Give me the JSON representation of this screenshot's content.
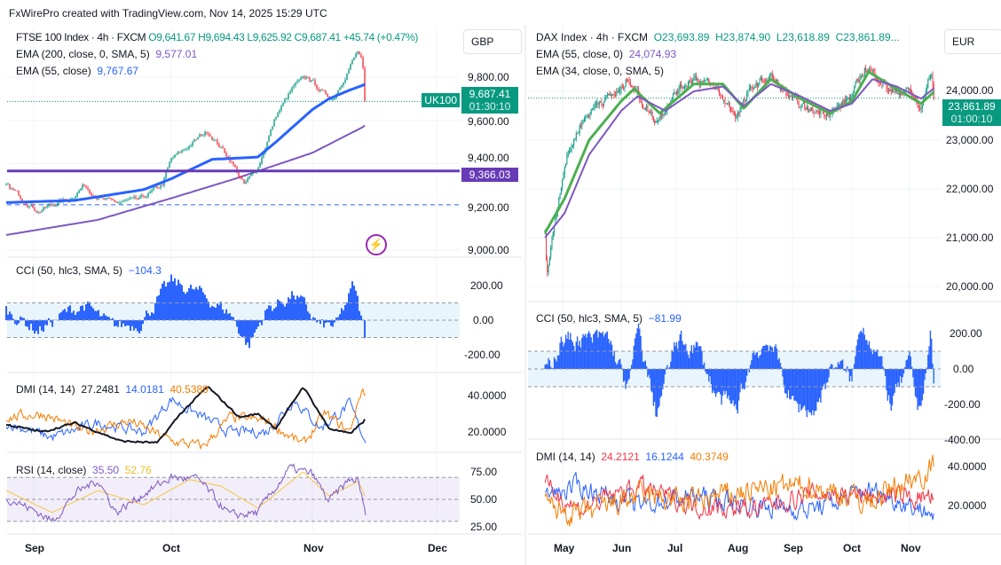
{
  "header": "FxWirePro created with TradingView.com, Nov 14, 2025 15:29 UTC",
  "colors": {
    "up": "#089981",
    "down": "#f23645",
    "ema55": "#2962ff",
    "ema200": "#7e57c2",
    "cci": "#2962ff",
    "level": "#673ab7"
  },
  "left": {
    "title": "FTSE 100 Index · 4h · FXCM",
    "o": "O9,641.67",
    "h": "H9,694.43",
    "l": "L9,625.92",
    "c": "C9,687.41",
    "chg": "+45.74 (+0.47%)",
    "ema200_label": "EMA (200, close, 0, SMA, 5)",
    "ema200_val": "9,577.01",
    "ema55_label": "EMA (55, close)",
    "ema55_val": "9,767.67",
    "currency": "GBP",
    "symbol_tag": "UK100",
    "last_price": "9,687.41",
    "countdown": "01:30:10",
    "level_tag": "9,366.03",
    "price_ticks": [
      "9,800.00",
      "9,600.00",
      "9,400.00",
      "9,200.00",
      "9,000.00"
    ],
    "cci_label": "CCI (50, hlc3, SMA, 5)",
    "cci_val": "−104.3",
    "cci_ticks": [
      "200.00",
      "0.00",
      "-200.00"
    ],
    "dmi_label": "DMI (14, 14)",
    "dmi_adx": "27.2481",
    "dmi_plus": "14.0181",
    "dmi_minus": "40.5389",
    "dmi_ticks": [
      "40.0000",
      "20.0000"
    ],
    "rsi_label": "RSI (14, close)",
    "rsi_val": "35.50",
    "rsi_ma": "52.76",
    "rsi_ticks": [
      "75.00",
      "50.00",
      "25.00"
    ],
    "months": [
      "Sep",
      "Oct",
      "Nov",
      "Dec"
    ]
  },
  "right": {
    "title": "DAX Index · 4h · FXCM",
    "o": "O23,693.89",
    "h": "H23,874.90",
    "l": "L23,618.89",
    "c": "C23,861.89...",
    "ema55_label": "EMA (55, close, 0)",
    "ema55_val": "24,074.93",
    "ema34_label": "EMA (34, close, 0, SMA, 5)",
    "currency": "EUR",
    "last_price": "23,861.89",
    "countdown": "01:00:10",
    "price_ticks": [
      "24,000.00",
      "23,000.00",
      "22,000.00",
      "21,000.00",
      "20,000.00"
    ],
    "cci_label": "CCI (50, hlc3, SMA, 5)",
    "cci_val": "−81.99",
    "cci_ticks": [
      "200.00",
      "0.00",
      "-200.00",
      "-400.00"
    ],
    "dmi_label": "DMI (14, 14)",
    "dmi_adx": "24.2121",
    "dmi_plus": "16.1244",
    "dmi_minus": "40.3749",
    "dmi_ticks": [
      "40.0000",
      "20.0000"
    ],
    "months": [
      "May",
      "Jun",
      "Jul",
      "Aug",
      "Sep",
      "Oct",
      "Nov"
    ]
  },
  "chart_data": [
    {
      "type": "candlestick",
      "symbol": "FTSE 100 Index",
      "timeframe": "4h",
      "ylim": [
        9000,
        9950
      ],
      "horizontal_line": 9366.03,
      "dashed_line": 9210,
      "close": [
        [
          "2025-08-26",
          9300
        ],
        [
          "2025-08-29",
          9250
        ],
        [
          "2025-09-02",
          9180
        ],
        [
          "2025-09-05",
          9210
        ],
        [
          "2025-09-09",
          9240
        ],
        [
          "2025-09-12",
          9300
        ],
        [
          "2025-09-16",
          9230
        ],
        [
          "2025-09-19",
          9220
        ],
        [
          "2025-09-24",
          9230
        ],
        [
          "2025-09-29",
          9300
        ],
        [
          "2025-10-01",
          9420
        ],
        [
          "2025-10-03",
          9450
        ],
        [
          "2025-10-07",
          9520
        ],
        [
          "2025-10-09",
          9550
        ],
        [
          "2025-10-14",
          9420
        ],
        [
          "2025-10-17",
          9300
        ],
        [
          "2025-10-20",
          9380
        ],
        [
          "2025-10-22",
          9500
        ],
        [
          "2025-10-24",
          9620
        ],
        [
          "2025-10-28",
          9760
        ],
        [
          "2025-10-31",
          9800
        ],
        [
          "2025-11-04",
          9720
        ],
        [
          "2025-11-06",
          9700
        ],
        [
          "2025-11-10",
          9850
        ],
        [
          "2025-11-12",
          9920
        ],
        [
          "2025-11-13",
          9870
        ],
        [
          "2025-11-14",
          9687
        ]
      ],
      "ema55": [
        [
          "2025-08-26",
          9220
        ],
        [
          "2025-09-10",
          9230
        ],
        [
          "2025-09-25",
          9280
        ],
        [
          "2025-10-01",
          9330
        ],
        [
          "2025-10-10",
          9420
        ],
        [
          "2025-10-20",
          9430
        ],
        [
          "2025-10-24",
          9500
        ],
        [
          "2025-11-01",
          9650
        ],
        [
          "2025-11-05",
          9700
        ],
        [
          "2025-11-10",
          9740
        ],
        [
          "2025-11-14",
          9768
        ]
      ],
      "ema200": [
        [
          "2025-08-26",
          9070
        ],
        [
          "2025-09-15",
          9140
        ],
        [
          "2025-10-01",
          9240
        ],
        [
          "2025-10-15",
          9330
        ],
        [
          "2025-11-01",
          9450
        ],
        [
          "2025-11-14",
          9577
        ]
      ],
      "cci": [
        [
          "2025-08-26",
          60
        ],
        [
          "2025-09-02",
          -60
        ],
        [
          "2025-09-08",
          40
        ],
        [
          "2025-09-12",
          90
        ],
        [
          "2025-09-18",
          -40
        ],
        [
          "2025-09-24",
          -20
        ],
        [
          "2025-10-01",
          220
        ],
        [
          "2025-10-07",
          160
        ],
        [
          "2025-10-14",
          40
        ],
        [
          "2025-10-18",
          -150
        ],
        [
          "2025-10-22",
          60
        ],
        [
          "2025-10-28",
          150
        ],
        [
          "2025-11-03",
          -40
        ],
        [
          "2025-11-07",
          -30
        ],
        [
          "2025-11-11",
          200
        ],
        [
          "2025-11-14",
          -104
        ]
      ],
      "dmi_adx": [
        [
          "2025-08-26",
          24
        ],
        [
          "2025-09-03",
          20
        ],
        [
          "2025-09-10",
          25
        ],
        [
          "2025-09-20",
          15
        ],
        [
          "2025-09-28",
          14
        ],
        [
          "2025-10-03",
          30
        ],
        [
          "2025-10-09",
          45
        ],
        [
          "2025-10-16",
          28
        ],
        [
          "2025-10-20",
          30
        ],
        [
          "2025-10-24",
          22
        ],
        [
          "2025-10-30",
          45
        ],
        [
          "2025-11-05",
          22
        ],
        [
          "2025-11-10",
          19
        ],
        [
          "2025-11-14",
          27
        ]
      ],
      "dmi_plus": [
        [
          "2025-08-26",
          25
        ],
        [
          "2025-09-05",
          17
        ],
        [
          "2025-09-15",
          25
        ],
        [
          "2025-09-25",
          20
        ],
        [
          "2025-10-01",
          38
        ],
        [
          "2025-10-08",
          28
        ],
        [
          "2025-10-14",
          20
        ],
        [
          "2025-10-22",
          20
        ],
        [
          "2025-10-28",
          38
        ],
        [
          "2025-11-03",
          22
        ],
        [
          "2025-11-10",
          35
        ],
        [
          "2025-11-14",
          14
        ]
      ],
      "dmi_minus": [
        [
          "2025-08-26",
          28
        ],
        [
          "2025-09-03",
          30
        ],
        [
          "2025-09-12",
          20
        ],
        [
          "2025-09-22",
          26
        ],
        [
          "2025-10-01",
          15
        ],
        [
          "2025-10-08",
          12
        ],
        [
          "2025-10-14",
          28
        ],
        [
          "2025-10-22",
          26
        ],
        [
          "2025-10-30",
          13
        ],
        [
          "2025-11-04",
          30
        ],
        [
          "2025-11-10",
          20
        ],
        [
          "2025-11-13",
          44
        ],
        [
          "2025-11-14",
          40.5
        ]
      ],
      "rsi": [
        [
          "2025-08-26",
          52
        ],
        [
          "2025-09-02",
          38
        ],
        [
          "2025-09-05",
          30
        ],
        [
          "2025-09-10",
          55
        ],
        [
          "2025-09-15",
          68
        ],
        [
          "2025-09-19",
          38
        ],
        [
          "2025-09-25",
          55
        ],
        [
          "2025-10-01",
          70
        ],
        [
          "2025-10-07",
          68
        ],
        [
          "2025-10-14",
          35
        ],
        [
          "2025-10-20",
          38
        ],
        [
          "2025-10-27",
          78
        ],
        [
          "2025-11-01",
          73
        ],
        [
          "2025-11-05",
          48
        ],
        [
          "2025-11-10",
          68
        ],
        [
          "2025-11-12",
          67
        ],
        [
          "2025-11-14",
          35.5
        ]
      ],
      "rsi_ma": [
        [
          "2025-08-26",
          58
        ],
        [
          "2025-09-05",
          38
        ],
        [
          "2025-09-15",
          58
        ],
        [
          "2025-09-25",
          45
        ],
        [
          "2025-10-05",
          68
        ],
        [
          "2025-10-12",
          62
        ],
        [
          "2025-10-20",
          42
        ],
        [
          "2025-10-30",
          75
        ],
        [
          "2025-11-05",
          53
        ],
        [
          "2025-11-12",
          66
        ],
        [
          "2025-11-14",
          52.76
        ]
      ]
    },
    {
      "type": "candlestick",
      "symbol": "DAX Index",
      "timeframe": "4h",
      "ylim": [
        19800,
        24700
      ],
      "close": [
        [
          "2025-04-22",
          21200
        ],
        [
          "2025-04-23",
          20300
        ],
        [
          "2025-04-28",
          21600
        ],
        [
          "2025-05-02",
          22500
        ],
        [
          "2025-05-10",
          23300
        ],
        [
          "2025-05-20",
          23800
        ],
        [
          "2025-06-01",
          24000
        ],
        [
          "2025-06-05",
          24300
        ],
        [
          "2025-06-12",
          23800
        ],
        [
          "2025-06-20",
          23400
        ],
        [
          "2025-07-01",
          24000
        ],
        [
          "2025-07-10",
          24300
        ],
        [
          "2025-07-20",
          24100
        ],
        [
          "2025-08-01",
          23500
        ],
        [
          "2025-08-10",
          24100
        ],
        [
          "2025-08-20",
          24300
        ],
        [
          "2025-09-01",
          23800
        ],
        [
          "2025-09-10",
          23600
        ],
        [
          "2025-09-22",
          23600
        ],
        [
          "2025-10-01",
          23900
        ],
        [
          "2025-10-08",
          24500
        ],
        [
          "2025-10-15",
          24300
        ],
        [
          "2025-10-22",
          24000
        ],
        [
          "2025-11-01",
          24000
        ],
        [
          "2025-11-07",
          23600
        ],
        [
          "2025-11-12",
          24400
        ],
        [
          "2025-11-14",
          23862
        ]
      ],
      "ema55": [
        [
          "2025-04-22",
          21000
        ],
        [
          "2025-05-02",
          21500
        ],
        [
          "2025-05-15",
          22700
        ],
        [
          "2025-06-01",
          23600
        ],
        [
          "2025-06-10",
          23900
        ],
        [
          "2025-06-25",
          23600
        ],
        [
          "2025-07-10",
          24000
        ],
        [
          "2025-07-25",
          24100
        ],
        [
          "2025-08-05",
          23700
        ],
        [
          "2025-08-20",
          24150
        ],
        [
          "2025-09-05",
          23900
        ],
        [
          "2025-09-20",
          23600
        ],
        [
          "2025-10-01",
          23750
        ],
        [
          "2025-10-12",
          24250
        ],
        [
          "2025-10-25",
          24100
        ],
        [
          "2025-11-07",
          23850
        ],
        [
          "2025-11-14",
          24075
        ]
      ],
      "ema34": [
        [
          "2025-04-22",
          21100
        ],
        [
          "2025-05-02",
          21800
        ],
        [
          "2025-05-15",
          23000
        ],
        [
          "2025-06-01",
          23800
        ],
        [
          "2025-06-08",
          24050
        ],
        [
          "2025-06-22",
          23550
        ],
        [
          "2025-07-10",
          24150
        ],
        [
          "2025-07-25",
          24150
        ],
        [
          "2025-08-05",
          23650
        ],
        [
          "2025-08-20",
          24250
        ],
        [
          "2025-09-05",
          23850
        ],
        [
          "2025-09-20",
          23550
        ],
        [
          "2025-10-01",
          23800
        ],
        [
          "2025-10-10",
          24400
        ],
        [
          "2025-10-25",
          24050
        ],
        [
          "2025-11-07",
          23750
        ],
        [
          "2025-11-14",
          24000
        ]
      ],
      "cci": [
        [
          "2025-04-22",
          -20
        ],
        [
          "2025-05-01",
          170
        ],
        [
          "2025-05-15",
          160
        ],
        [
          "2025-05-25",
          180
        ],
        [
          "2025-06-05",
          -120
        ],
        [
          "2025-06-10",
          230
        ],
        [
          "2025-06-20",
          -250
        ],
        [
          "2025-07-01",
          150
        ],
        [
          "2025-07-12",
          120
        ],
        [
          "2025-07-22",
          -160
        ],
        [
          "2025-08-01",
          -230
        ],
        [
          "2025-08-10",
          80
        ],
        [
          "2025-08-20",
          160
        ],
        [
          "2025-09-01",
          -200
        ],
        [
          "2025-09-12",
          -240
        ],
        [
          "2025-09-22",
          40
        ],
        [
          "2025-10-01",
          -60
        ],
        [
          "2025-10-06",
          270
        ],
        [
          "2025-10-15",
          80
        ],
        [
          "2025-10-22",
          -200
        ],
        [
          "2025-11-01",
          30
        ],
        [
          "2025-11-06",
          -250
        ],
        [
          "2025-11-12",
          190
        ],
        [
          "2025-11-14",
          -82
        ]
      ],
      "dmi_adx": [
        [
          "2025-04-22",
          30
        ],
        [
          "2025-05-10",
          18
        ],
        [
          "2025-06-10",
          30
        ],
        [
          "2025-07-10",
          20
        ],
        [
          "2025-08-10",
          18
        ],
        [
          "2025-09-10",
          26
        ],
        [
          "2025-10-10",
          25
        ],
        [
          "2025-11-14",
          24
        ]
      ],
      "dmi_plus": [
        [
          "2025-04-22",
          25
        ],
        [
          "2025-05-10",
          30
        ],
        [
          "2025-06-10",
          20
        ],
        [
          "2025-07-10",
          25
        ],
        [
          "2025-08-10",
          20
        ],
        [
          "2025-09-10",
          18
        ],
        [
          "2025-10-10",
          28
        ],
        [
          "2025-11-14",
          16
        ]
      ],
      "dmi_minus": [
        [
          "2025-04-22",
          20
        ],
        [
          "2025-05-10",
          15
        ],
        [
          "2025-06-10",
          25
        ],
        [
          "2025-07-10",
          22
        ],
        [
          "2025-08-10",
          28
        ],
        [
          "2025-09-10",
          30
        ],
        [
          "2025-10-10",
          22
        ],
        [
          "2025-11-14",
          40
        ]
      ]
    }
  ]
}
